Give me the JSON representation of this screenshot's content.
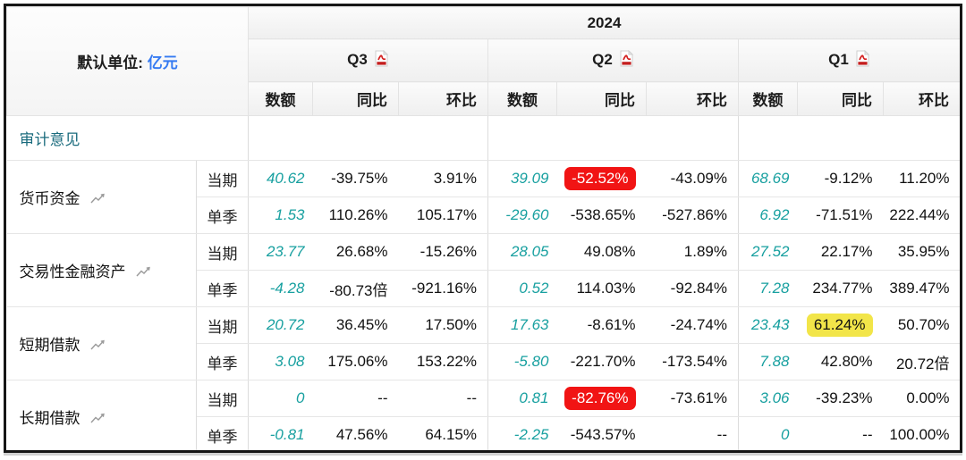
{
  "header": {
    "unit_label": "默认单位:",
    "unit_value": "亿元",
    "year": "2024",
    "quarters": [
      "Q3",
      "Q2",
      "Q1"
    ],
    "subheaders": [
      "数额",
      "同比",
      "环比"
    ]
  },
  "audit_label": "审计意见",
  "period_types": [
    "当期",
    "单季"
  ],
  "icons": {
    "pdf_icon": "pdf-download",
    "trend_icon": "line-chart"
  },
  "colors": {
    "accent_teal": "#18a0a0",
    "accent_dark_teal": "#1a6b7d",
    "accent_blue": "#357af2",
    "badge_red": "#f11414",
    "badge_yellow": "#f2e549"
  },
  "rows": [
    {
      "label": "货币资金",
      "periods": [
        {
          "type": "当期",
          "cells": [
            {
              "v": "40.62"
            },
            {
              "v": "-39.75%"
            },
            {
              "v": "3.91%"
            },
            {
              "v": "39.09"
            },
            {
              "v": "-52.52%",
              "hl": "red"
            },
            {
              "v": "-43.09%"
            },
            {
              "v": "68.69"
            },
            {
              "v": "-9.12%"
            },
            {
              "v": "11.20%"
            }
          ]
        },
        {
          "type": "单季",
          "cells": [
            {
              "v": "1.53"
            },
            {
              "v": "110.26%"
            },
            {
              "v": "105.17%"
            },
            {
              "v": "-29.60"
            },
            {
              "v": "-538.65%"
            },
            {
              "v": "-527.86%"
            },
            {
              "v": "6.92"
            },
            {
              "v": "-71.51%"
            },
            {
              "v": "222.44%"
            }
          ]
        }
      ]
    },
    {
      "label": "交易性金融资产",
      "periods": [
        {
          "type": "当期",
          "cells": [
            {
              "v": "23.77"
            },
            {
              "v": "26.68%"
            },
            {
              "v": "-15.26%"
            },
            {
              "v": "28.05"
            },
            {
              "v": "49.08%"
            },
            {
              "v": "1.89%"
            },
            {
              "v": "27.52"
            },
            {
              "v": "22.17%"
            },
            {
              "v": "35.95%"
            }
          ]
        },
        {
          "type": "单季",
          "cells": [
            {
              "v": "-4.28"
            },
            {
              "v": "-80.73倍"
            },
            {
              "v": "-921.16%"
            },
            {
              "v": "0.52"
            },
            {
              "v": "114.03%"
            },
            {
              "v": "-92.84%"
            },
            {
              "v": "7.28"
            },
            {
              "v": "234.77%"
            },
            {
              "v": "389.47%"
            }
          ]
        }
      ]
    },
    {
      "label": "短期借款",
      "periods": [
        {
          "type": "当期",
          "cells": [
            {
              "v": "20.72"
            },
            {
              "v": "36.45%"
            },
            {
              "v": "17.50%"
            },
            {
              "v": "17.63"
            },
            {
              "v": "-8.61%"
            },
            {
              "v": "-24.74%"
            },
            {
              "v": "23.43"
            },
            {
              "v": "61.24%",
              "hl": "yellow"
            },
            {
              "v": "50.70%"
            }
          ]
        },
        {
          "type": "单季",
          "cells": [
            {
              "v": "3.08"
            },
            {
              "v": "175.06%"
            },
            {
              "v": "153.22%"
            },
            {
              "v": "-5.80"
            },
            {
              "v": "-221.70%"
            },
            {
              "v": "-173.54%"
            },
            {
              "v": "7.88"
            },
            {
              "v": "42.80%"
            },
            {
              "v": "20.72倍"
            }
          ]
        }
      ]
    },
    {
      "label": "长期借款",
      "periods": [
        {
          "type": "当期",
          "cells": [
            {
              "v": "0"
            },
            {
              "v": "--"
            },
            {
              "v": "--"
            },
            {
              "v": "0.81"
            },
            {
              "v": "-82.76%",
              "hl": "red"
            },
            {
              "v": "-73.61%"
            },
            {
              "v": "3.06"
            },
            {
              "v": "-39.23%"
            },
            {
              "v": "0.00%"
            }
          ]
        },
        {
          "type": "单季",
          "cells": [
            {
              "v": "-0.81"
            },
            {
              "v": "47.56%"
            },
            {
              "v": "64.15%"
            },
            {
              "v": "-2.25"
            },
            {
              "v": "-543.57%"
            },
            {
              "v": "--"
            },
            {
              "v": "0"
            },
            {
              "v": "--"
            },
            {
              "v": "100.00%"
            }
          ]
        }
      ]
    }
  ]
}
